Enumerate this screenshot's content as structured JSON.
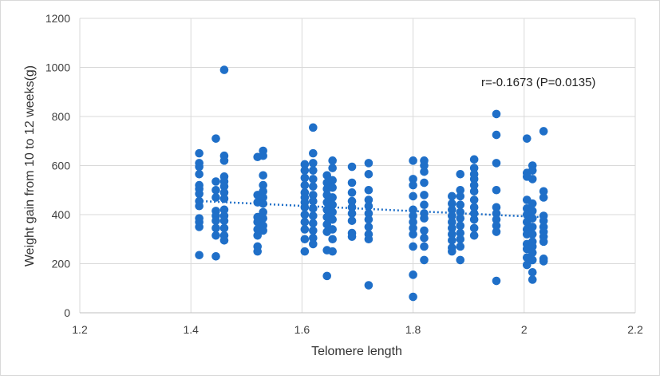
{
  "chart_data": {
    "type": "scatter",
    "title": "",
    "xlabel": "Telomere length",
    "ylabel": "Weight gain from 10 to 12 weeks(g)",
    "xlim": [
      1.2,
      2.2
    ],
    "ylim": [
      0,
      1200
    ],
    "xticks": [
      1.2,
      1.4,
      1.6,
      1.8,
      2,
      2.2
    ],
    "yticks": [
      0,
      200,
      400,
      600,
      800,
      1000,
      1200
    ],
    "xtick_labels": [
      "1.2",
      "1.4",
      "1.6",
      "1.8",
      "2",
      "2.2"
    ],
    "ytick_labels": [
      "0",
      "200",
      "400",
      "600",
      "800",
      "1000",
      "1200"
    ],
    "grid": true,
    "annotation": "r=-0.1673 (P=0.0135)",
    "point_color": "#1f6fc8",
    "trendline": {
      "style": "dotted",
      "x": [
        1.42,
        2.03
      ],
      "y": [
        455,
        390
      ]
    },
    "points": [
      [
        1.415,
        650
      ],
      [
        1.415,
        610
      ],
      [
        1.415,
        595
      ],
      [
        1.415,
        565
      ],
      [
        1.415,
        520
      ],
      [
        1.415,
        505
      ],
      [
        1.415,
        485
      ],
      [
        1.415,
        455
      ],
      [
        1.415,
        435
      ],
      [
        1.415,
        385
      ],
      [
        1.415,
        370
      ],
      [
        1.415,
        350
      ],
      [
        1.415,
        235
      ],
      [
        1.445,
        710
      ],
      [
        1.445,
        535
      ],
      [
        1.445,
        500
      ],
      [
        1.445,
        470
      ],
      [
        1.445,
        415
      ],
      [
        1.445,
        395
      ],
      [
        1.445,
        375
      ],
      [
        1.445,
        345
      ],
      [
        1.445,
        315
      ],
      [
        1.445,
        230
      ],
      [
        1.46,
        990
      ],
      [
        1.46,
        640
      ],
      [
        1.46,
        620
      ],
      [
        1.46,
        555
      ],
      [
        1.46,
        535
      ],
      [
        1.46,
        515
      ],
      [
        1.46,
        490
      ],
      [
        1.46,
        465
      ],
      [
        1.46,
        420
      ],
      [
        1.46,
        395
      ],
      [
        1.46,
        375
      ],
      [
        1.46,
        345
      ],
      [
        1.46,
        315
      ],
      [
        1.46,
        295
      ],
      [
        1.52,
        635
      ],
      [
        1.52,
        480
      ],
      [
        1.52,
        450
      ],
      [
        1.52,
        390
      ],
      [
        1.52,
        370
      ],
      [
        1.52,
        340
      ],
      [
        1.52,
        315
      ],
      [
        1.52,
        270
      ],
      [
        1.52,
        250
      ],
      [
        1.53,
        660
      ],
      [
        1.53,
        640
      ],
      [
        1.53,
        560
      ],
      [
        1.53,
        520
      ],
      [
        1.53,
        495
      ],
      [
        1.53,
        470
      ],
      [
        1.53,
        445
      ],
      [
        1.53,
        410
      ],
      [
        1.53,
        385
      ],
      [
        1.53,
        355
      ],
      [
        1.53,
        335
      ],
      [
        1.605,
        605
      ],
      [
        1.605,
        580
      ],
      [
        1.605,
        550
      ],
      [
        1.605,
        520
      ],
      [
        1.605,
        490
      ],
      [
        1.605,
        470
      ],
      [
        1.605,
        450
      ],
      [
        1.605,
        430
      ],
      [
        1.605,
        400
      ],
      [
        1.605,
        370
      ],
      [
        1.605,
        340
      ],
      [
        1.605,
        300
      ],
      [
        1.605,
        250
      ],
      [
        1.62,
        755
      ],
      [
        1.62,
        650
      ],
      [
        1.62,
        610
      ],
      [
        1.62,
        580
      ],
      [
        1.62,
        545
      ],
      [
        1.62,
        515
      ],
      [
        1.62,
        480
      ],
      [
        1.62,
        455
      ],
      [
        1.62,
        425
      ],
      [
        1.62,
        395
      ],
      [
        1.62,
        365
      ],
      [
        1.62,
        335
      ],
      [
        1.62,
        305
      ],
      [
        1.62,
        280
      ],
      [
        1.645,
        560
      ],
      [
        1.645,
        530
      ],
      [
        1.645,
        505
      ],
      [
        1.645,
        480
      ],
      [
        1.645,
        450
      ],
      [
        1.645,
        420
      ],
      [
        1.645,
        390
      ],
      [
        1.645,
        360
      ],
      [
        1.645,
        330
      ],
      [
        1.645,
        255
      ],
      [
        1.645,
        150
      ],
      [
        1.655,
        620
      ],
      [
        1.655,
        590
      ],
      [
        1.655,
        540
      ],
      [
        1.655,
        510
      ],
      [
        1.655,
        470
      ],
      [
        1.655,
        440
      ],
      [
        1.655,
        410
      ],
      [
        1.655,
        380
      ],
      [
        1.655,
        340
      ],
      [
        1.655,
        300
      ],
      [
        1.655,
        250
      ],
      [
        1.69,
        595
      ],
      [
        1.69,
        530
      ],
      [
        1.69,
        490
      ],
      [
        1.69,
        455
      ],
      [
        1.69,
        430
      ],
      [
        1.69,
        405
      ],
      [
        1.69,
        375
      ],
      [
        1.69,
        325
      ],
      [
        1.69,
        310
      ],
      [
        1.72,
        610
      ],
      [
        1.72,
        565
      ],
      [
        1.72,
        500
      ],
      [
        1.72,
        460
      ],
      [
        1.72,
        435
      ],
      [
        1.72,
        405
      ],
      [
        1.72,
        380
      ],
      [
        1.72,
        350
      ],
      [
        1.72,
        320
      ],
      [
        1.72,
        300
      ],
      [
        1.72,
        112
      ],
      [
        1.8,
        620
      ],
      [
        1.8,
        545
      ],
      [
        1.8,
        520
      ],
      [
        1.8,
        475
      ],
      [
        1.8,
        420
      ],
      [
        1.8,
        395
      ],
      [
        1.8,
        370
      ],
      [
        1.8,
        345
      ],
      [
        1.8,
        320
      ],
      [
        1.8,
        270
      ],
      [
        1.8,
        155
      ],
      [
        1.8,
        65
      ],
      [
        1.82,
        620
      ],
      [
        1.82,
        600
      ],
      [
        1.82,
        575
      ],
      [
        1.82,
        530
      ],
      [
        1.82,
        480
      ],
      [
        1.82,
        440
      ],
      [
        1.82,
        405
      ],
      [
        1.82,
        385
      ],
      [
        1.82,
        335
      ],
      [
        1.82,
        305
      ],
      [
        1.82,
        270
      ],
      [
        1.82,
        215
      ],
      [
        1.87,
        475
      ],
      [
        1.87,
        445
      ],
      [
        1.87,
        420
      ],
      [
        1.87,
        395
      ],
      [
        1.87,
        370
      ],
      [
        1.87,
        345
      ],
      [
        1.87,
        320
      ],
      [
        1.87,
        295
      ],
      [
        1.87,
        265
      ],
      [
        1.87,
        250
      ],
      [
        1.885,
        565
      ],
      [
        1.885,
        500
      ],
      [
        1.885,
        475
      ],
      [
        1.885,
        440
      ],
      [
        1.885,
        410
      ],
      [
        1.885,
        385
      ],
      [
        1.885,
        355
      ],
      [
        1.885,
        325
      ],
      [
        1.885,
        300
      ],
      [
        1.885,
        270
      ],
      [
        1.885,
        215
      ],
      [
        1.91,
        625
      ],
      [
        1.91,
        590
      ],
      [
        1.91,
        565
      ],
      [
        1.91,
        545
      ],
      [
        1.91,
        520
      ],
      [
        1.91,
        495
      ],
      [
        1.91,
        460
      ],
      [
        1.91,
        430
      ],
      [
        1.91,
        405
      ],
      [
        1.91,
        380
      ],
      [
        1.91,
        345
      ],
      [
        1.91,
        315
      ],
      [
        1.95,
        810
      ],
      [
        1.95,
        725
      ],
      [
        1.95,
        610
      ],
      [
        1.95,
        500
      ],
      [
        1.95,
        430
      ],
      [
        1.95,
        405
      ],
      [
        1.95,
        380
      ],
      [
        1.95,
        355
      ],
      [
        1.95,
        330
      ],
      [
        1.95,
        130
      ],
      [
        2.005,
        710
      ],
      [
        2.005,
        570
      ],
      [
        2.005,
        555
      ],
      [
        2.005,
        460
      ],
      [
        2.005,
        425
      ],
      [
        2.005,
        400
      ],
      [
        2.005,
        370
      ],
      [
        2.005,
        340
      ],
      [
        2.005,
        320
      ],
      [
        2.005,
        280
      ],
      [
        2.005,
        260
      ],
      [
        2.005,
        225
      ],
      [
        2.005,
        195
      ],
      [
        2.015,
        600
      ],
      [
        2.015,
        580
      ],
      [
        2.015,
        545
      ],
      [
        2.015,
        445
      ],
      [
        2.015,
        415
      ],
      [
        2.015,
        385
      ],
      [
        2.015,
        350
      ],
      [
        2.015,
        320
      ],
      [
        2.015,
        290
      ],
      [
        2.015,
        270
      ],
      [
        2.015,
        245
      ],
      [
        2.015,
        215
      ],
      [
        2.015,
        165
      ],
      [
        2.015,
        135
      ],
      [
        2.035,
        740
      ],
      [
        2.035,
        495
      ],
      [
        2.035,
        470
      ],
      [
        2.035,
        395
      ],
      [
        2.035,
        375
      ],
      [
        2.035,
        350
      ],
      [
        2.035,
        330
      ],
      [
        2.035,
        310
      ],
      [
        2.035,
        290
      ],
      [
        2.035,
        220
      ],
      [
        2.035,
        210
      ]
    ]
  }
}
